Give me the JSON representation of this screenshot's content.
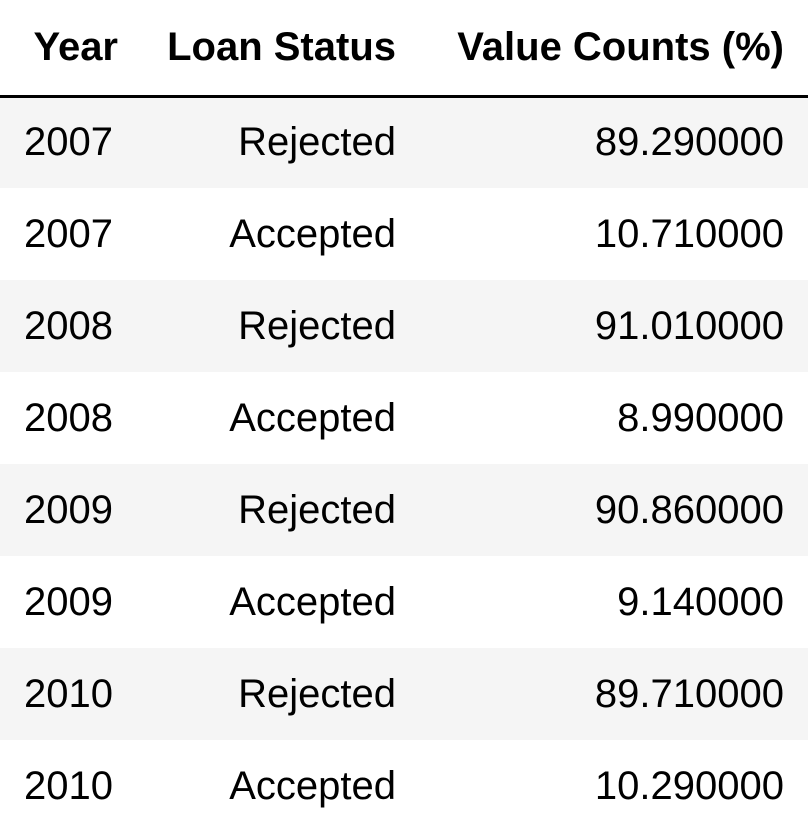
{
  "table": {
    "columns": [
      "Year",
      "Loan Status",
      "Value Counts (%)"
    ],
    "rows": [
      {
        "year": "2007",
        "status": "Rejected",
        "value": "89.290000"
      },
      {
        "year": "2007",
        "status": "Accepted",
        "value": "10.710000"
      },
      {
        "year": "2008",
        "status": "Rejected",
        "value": "91.010000"
      },
      {
        "year": "2008",
        "status": "Accepted",
        "value": "8.990000"
      },
      {
        "year": "2009",
        "status": "Rejected",
        "value": "90.860000"
      },
      {
        "year": "2009",
        "status": "Accepted",
        "value": "9.140000"
      },
      {
        "year": "2010",
        "status": "Rejected",
        "value": "89.710000"
      },
      {
        "year": "2010",
        "status": "Accepted",
        "value": "10.290000"
      }
    ]
  },
  "colors": {
    "header_border": "#000000",
    "row_stripe": "#f5f5f5",
    "background": "#ffffff",
    "text": "#000000"
  }
}
